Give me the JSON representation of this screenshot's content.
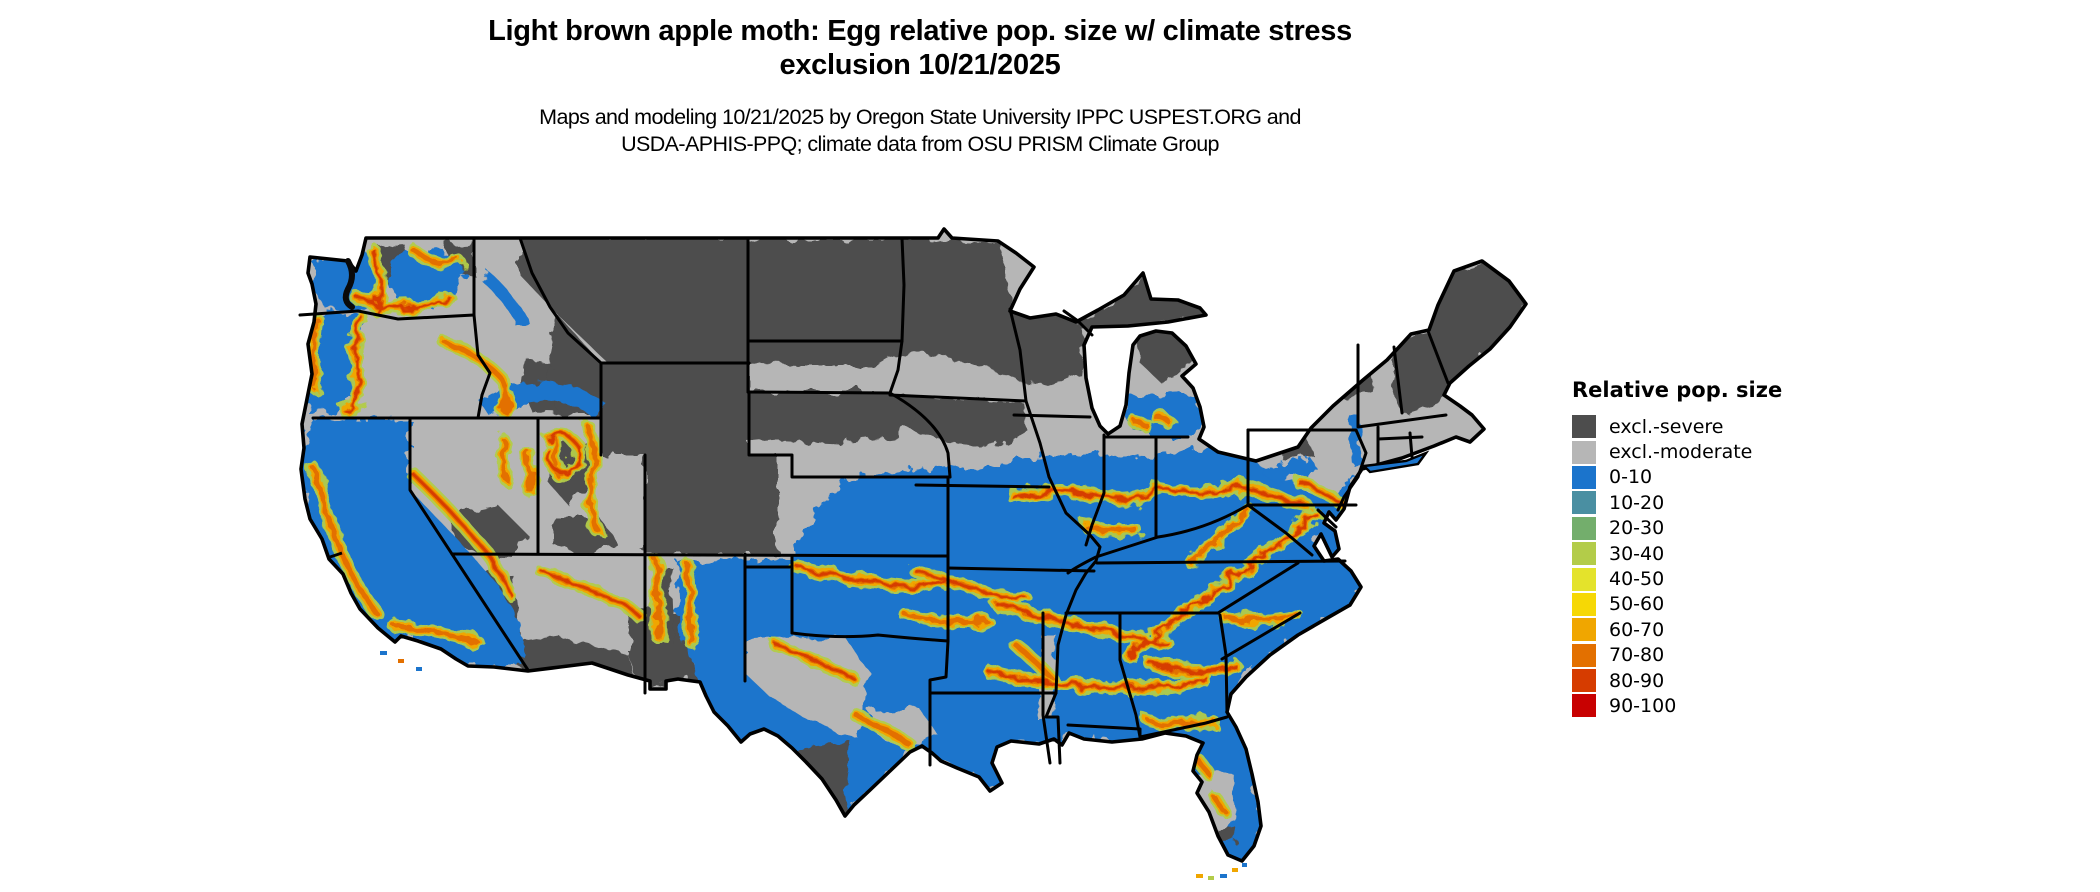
{
  "header": {
    "title_line1": "Light brown apple moth: Egg relative pop. size w/ climate stress",
    "title_line2": "exclusion 10/21/2025",
    "subtitle_line1": "Maps and modeling 10/21/2025 by Oregon State University IPPC USPEST.ORG and",
    "subtitle_line2": "USDA-APHIS-PPQ; climate data from OSU PRISM Climate Group"
  },
  "legend": {
    "title": "Relative pop. size",
    "items": [
      {
        "label": "excl.-severe",
        "color": "#4d4d4d"
      },
      {
        "label": "excl.-moderate",
        "color": "#b6b6b6"
      },
      {
        "label": "0-10",
        "color": "#1b74cc"
      },
      {
        "label": "10-20",
        "color": "#4a8fa2"
      },
      {
        "label": "20-30",
        "color": "#73ae6c"
      },
      {
        "label": "30-40",
        "color": "#b3cc49"
      },
      {
        "label": "40-50",
        "color": "#e4e32b"
      },
      {
        "label": "50-60",
        "color": "#f6d805"
      },
      {
        "label": "60-70",
        "color": "#f0a600"
      },
      {
        "label": "70-80",
        "color": "#e37000"
      },
      {
        "label": "80-90",
        "color": "#d63c00"
      },
      {
        "label": "90-100",
        "color": "#c80101"
      }
    ]
  },
  "map": {
    "region": "Contiguous United States",
    "type": "raster risk map with state boundaries",
    "background_color": "#ffffff",
    "boundary_color": "#000000"
  }
}
